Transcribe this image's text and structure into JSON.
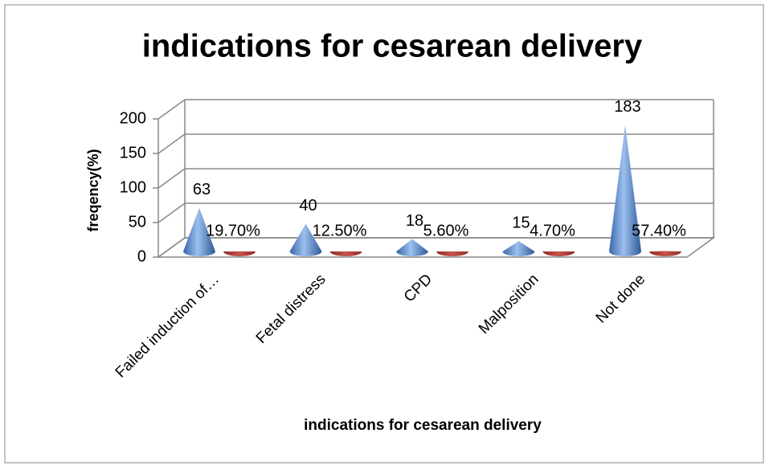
{
  "chart_data": {
    "type": "cone3d",
    "title": "indications for cesarean delivery",
    "x_label": "indications for cesarean delivery",
    "y_label": "freqency(%)",
    "categories": [
      "Failed induction of…",
      "Fetal distress",
      "CPD",
      "Malposition",
      "Not done"
    ],
    "series": [
      {
        "color": "#4f81bd",
        "values": [
          63,
          40,
          18,
          15,
          183
        ]
      },
      {
        "color": "#c0504d",
        "values": [
          0.197,
          0.125,
          0.056,
          0.047,
          0.574
        ],
        "value_labels": [
          "19.70%",
          "12.50%",
          "5.60%",
          "4.70%",
          "57.40%"
        ]
      }
    ],
    "ylim": [
      0,
      200
    ],
    "yticks": [
      0,
      50,
      100,
      150,
      200
    ],
    "grid": true
  }
}
